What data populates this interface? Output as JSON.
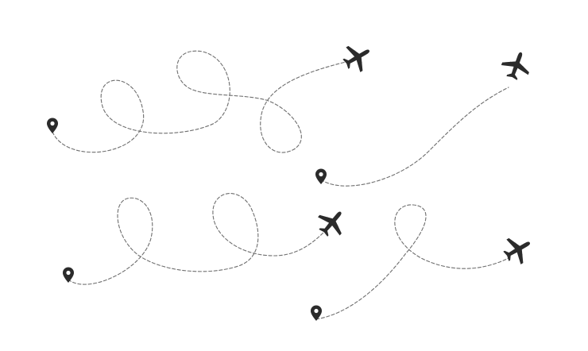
{
  "scene": {
    "background": "#ffffff",
    "path_color": "#6e6e6e",
    "icon_color": "#2b2b2b",
    "pin_icon": "map-pin-icon",
    "plane_icon": "airplane-icon",
    "routes": [
      {
        "id": "route-1",
        "style": "dashed-loops",
        "loops": 3
      },
      {
        "id": "route-2",
        "style": "dashed-curve",
        "loops": 0
      },
      {
        "id": "route-3",
        "style": "dashed-loops",
        "loops": 2
      },
      {
        "id": "route-4",
        "style": "dashed-loops",
        "loops": 1
      }
    ]
  }
}
